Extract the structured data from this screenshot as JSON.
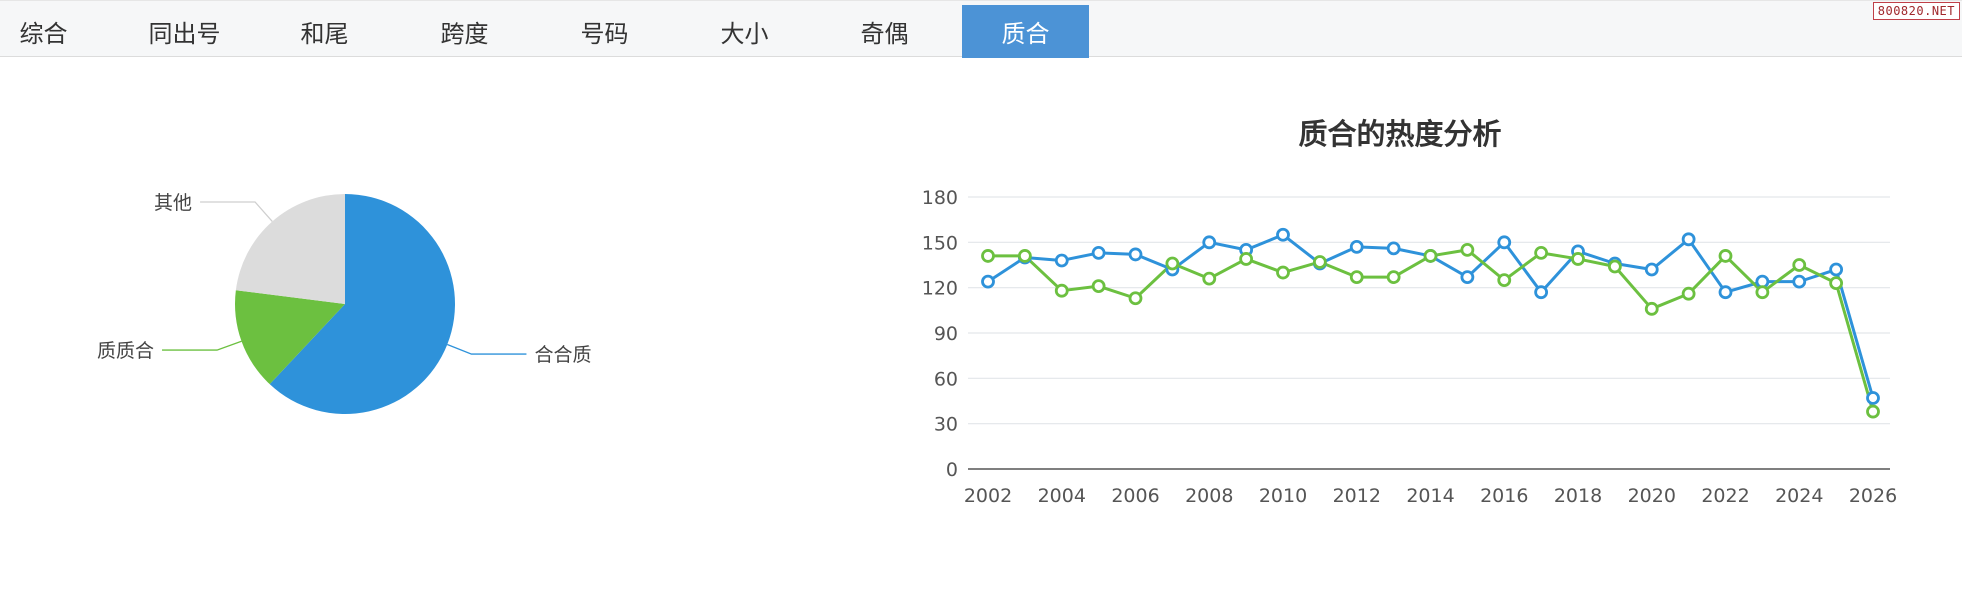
{
  "tabs": [
    {
      "label": "综合",
      "active": false
    },
    {
      "label": "同出号",
      "active": false
    },
    {
      "label": "和尾",
      "active": false
    },
    {
      "label": "跨度",
      "active": false
    },
    {
      "label": "号码",
      "active": false
    },
    {
      "label": "大小",
      "active": false
    },
    {
      "label": "奇偶",
      "active": false
    },
    {
      "label": "质合",
      "active": true
    }
  ],
  "watermark": "800820.NET",
  "colors": {
    "blue": "#2e92da",
    "green": "#6cc040",
    "gray": "#dcdcdc",
    "active_tab": "#4c93d6"
  },
  "chart_data": [
    {
      "type": "pie",
      "slices": [
        {
          "label": "合合质",
          "value": 62,
          "color": "#2e92da"
        },
        {
          "label": "质质合",
          "value": 15,
          "color": "#6cc040"
        },
        {
          "label": "其他",
          "value": 23,
          "color": "#dcdcdc"
        }
      ]
    },
    {
      "type": "line",
      "title": "质合的热度分析",
      "x": [
        2002,
        2003,
        2004,
        2005,
        2006,
        2007,
        2008,
        2009,
        2010,
        2011,
        2012,
        2013,
        2014,
        2015,
        2016,
        2017,
        2018,
        2019,
        2020,
        2021,
        2022,
        2023,
        2024,
        2025,
        2026
      ],
      "xticks": [
        "2002",
        "2004",
        "2006",
        "2008",
        "2010",
        "2012",
        "2014",
        "2016",
        "2018",
        "2020",
        "2022",
        "2024",
        "2026"
      ],
      "yticks": [
        "0",
        "30",
        "60",
        "90",
        "120",
        "150",
        "180"
      ],
      "ylim": [
        0,
        180
      ],
      "grid": true,
      "series": [
        {
          "color": "#2e92da",
          "values": [
            124,
            140,
            138,
            143,
            142,
            132,
            150,
            145,
            155,
            136,
            147,
            146,
            141,
            127,
            150,
            117,
            144,
            136,
            132,
            152,
            117,
            124,
            124,
            132,
            47
          ]
        },
        {
          "color": "#6cc040",
          "values": [
            141,
            141,
            118,
            121,
            113,
            136,
            126,
            139,
            130,
            137,
            127,
            127,
            141,
            145,
            125,
            143,
            139,
            134,
            106,
            116,
            141,
            117,
            135,
            123,
            38
          ]
        }
      ]
    }
  ]
}
